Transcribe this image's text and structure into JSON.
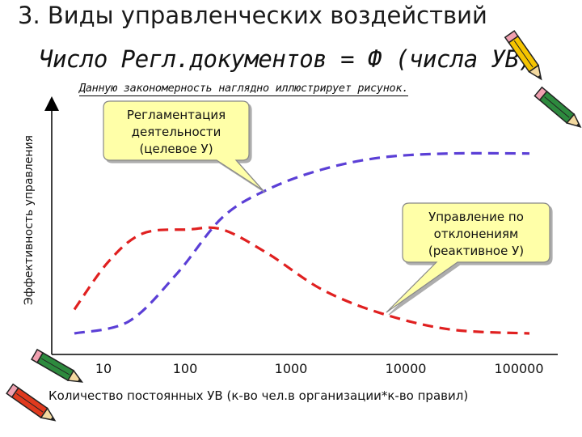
{
  "slide": {
    "title": "3. Виды управленческих воздействий",
    "formula": "Число Регл.документов = Ф (числа УВ)",
    "caption": "Данную закономерность наглядно иллюстрирует рисунок."
  },
  "chart_data": {
    "type": "line",
    "xscale": "log",
    "x_ticks": [
      "10",
      "100",
      "1000",
      "10000",
      "100000"
    ],
    "x": [
      10,
      100,
      1000,
      10000,
      100000
    ],
    "ylabel": "Эффективность управления",
    "xlabel": "Количество постоянных УВ (к-во чел.в организации*к-во правил)",
    "grid": false,
    "series": [
      {
        "name": "Регламентация деятельности (целевое У)",
        "color": "#5b3fd6",
        "style": "dashed",
        "points": [
          [
            10,
            0.0
          ],
          [
            30,
            0.06
          ],
          [
            80,
            0.3
          ],
          [
            200,
            0.58
          ],
          [
            500,
            0.72
          ],
          [
            1500,
            0.82
          ],
          [
            5000,
            0.88
          ],
          [
            20000,
            0.9
          ],
          [
            100000,
            0.9
          ]
        ]
      },
      {
        "name": "Управление по отклонениям (реактивное У)",
        "color": "#e02020",
        "style": "dashed",
        "points": [
          [
            10,
            0.12
          ],
          [
            20,
            0.36
          ],
          [
            40,
            0.5
          ],
          [
            100,
            0.52
          ],
          [
            200,
            0.52
          ],
          [
            500,
            0.4
          ],
          [
            1500,
            0.22
          ],
          [
            5000,
            0.1
          ],
          [
            20000,
            0.02
          ],
          [
            100000,
            0.0
          ]
        ]
      }
    ],
    "annotations": [
      {
        "lines": [
          "Регламентация",
          "деятельности",
          "(целевое У)"
        ],
        "target_series": 0,
        "target_x": 700
      },
      {
        "lines": [
          "Управление по",
          "отклонениям",
          "(реактивное У)"
        ],
        "target_series": 1,
        "target_x": 6000
      }
    ],
    "colors": {
      "callout_fill": "#ffffa8",
      "callout_stroke": "#888888"
    }
  },
  "decorations": {
    "clipart": [
      "pencil-icon",
      "pencil-icon",
      "pencil-icon",
      "pencil-icon"
    ]
  }
}
